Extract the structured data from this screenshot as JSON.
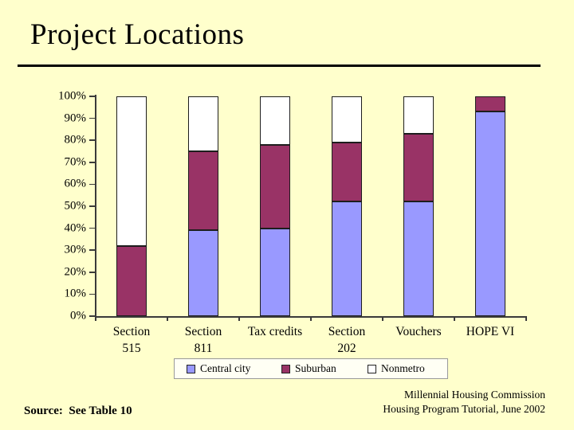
{
  "slide": {
    "title": "Project Locations",
    "source_note": "Source:  See Table 10",
    "credit_line1": "Millennial Housing Commission",
    "credit_line2": "Housing Program Tutorial, June 2002"
  },
  "colors": {
    "background": "#FFFFCC",
    "central_city": "#9999FF",
    "suburban": "#993366",
    "nonmetro": "#FFFFFF",
    "bar_border": "#1D1D1D",
    "axis": "#3A3A3A",
    "legend_bg": "#FFFFF4"
  },
  "chart_data": {
    "type": "bar",
    "subtype": "stacked-100-percent",
    "title": "",
    "xlabel": "",
    "ylabel": "",
    "ylim": [
      0,
      100
    ],
    "grid": false,
    "legend_position": "bottom",
    "categories": [
      "Section 515",
      "Section 811",
      "Tax credits",
      "Section 202",
      "Vouchers",
      "HOPE VI"
    ],
    "category_lines": [
      [
        "Section",
        "515"
      ],
      [
        "Section",
        "811"
      ],
      [
        "Tax credits"
      ],
      [
        "Section",
        "202"
      ],
      [
        "Vouchers"
      ],
      [
        "HOPE VI"
      ]
    ],
    "y_ticks": [
      "100%",
      "90%",
      "80%",
      "70%",
      "60%",
      "50%",
      "40%",
      "30%",
      "20%",
      "10%",
      "0%"
    ],
    "series": [
      {
        "name": "Central city",
        "color_key": "central_city",
        "values": [
          0,
          39,
          40,
          52,
          52,
          93
        ]
      },
      {
        "name": "Suburban",
        "color_key": "suburban",
        "values": [
          32,
          36,
          38,
          27,
          31,
          7
        ]
      },
      {
        "name": "Nonmetro",
        "color_key": "nonmetro",
        "values": [
          68,
          25,
          22,
          21,
          17,
          0
        ]
      }
    ]
  }
}
